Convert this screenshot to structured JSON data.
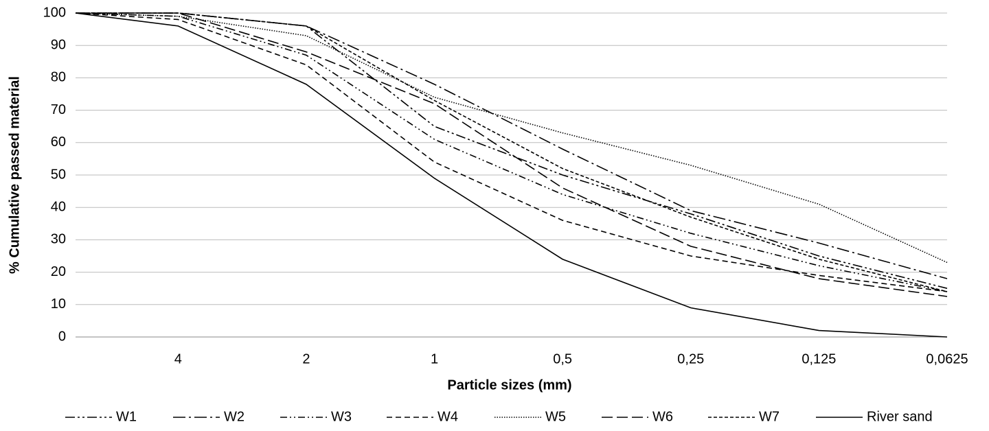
{
  "chart_data": {
    "type": "line",
    "x_label": "Particle sizes (mm)",
    "y_label": "% Cumulative passed material",
    "categories": [
      null,
      "4",
      "2",
      "1",
      "0,5",
      "0,25",
      "0,125",
      "0,0625"
    ],
    "ylim": [
      0,
      100
    ],
    "yticks": [
      0,
      10,
      20,
      30,
      40,
      50,
      60,
      70,
      80,
      90,
      100
    ],
    "grid": true,
    "series": [
      {
        "name": "W1",
        "color": "#000000",
        "dash": "14 4 3 4 3 4",
        "values": [
          100,
          100,
          96,
          65,
          50,
          38,
          25,
          15
        ]
      },
      {
        "name": "W2",
        "color": "#000000",
        "dash": "18 5 3 5",
        "values": [
          100,
          100,
          96,
          78,
          58,
          39,
          29,
          18
        ]
      },
      {
        "name": "W3",
        "color": "#000000",
        "dash": "10 4 2 4 2 4",
        "values": [
          100,
          99,
          87,
          61,
          44,
          32,
          22,
          14
        ]
      },
      {
        "name": "W4",
        "color": "#000000",
        "dash": "8 5",
        "values": [
          100,
          98,
          84,
          54,
          36,
          25,
          19,
          14
        ]
      },
      {
        "name": "W5",
        "color": "#000000",
        "dash": "1.5 2",
        "values": [
          100,
          99,
          93,
          74,
          63,
          53,
          41,
          23
        ]
      },
      {
        "name": "W6",
        "color": "#000000",
        "dash": "16 6",
        "values": [
          100,
          100,
          88,
          72,
          46,
          28,
          18,
          12.5
        ]
      },
      {
        "name": "W7",
        "color": "#000000",
        "dash": "5 3",
        "values": [
          100,
          100,
          96,
          73,
          52,
          37,
          24,
          14
        ]
      },
      {
        "name": "River sand",
        "color": "#000000",
        "dash": "none",
        "values": [
          100,
          96,
          78,
          49,
          24,
          9,
          2,
          0
        ]
      }
    ]
  }
}
